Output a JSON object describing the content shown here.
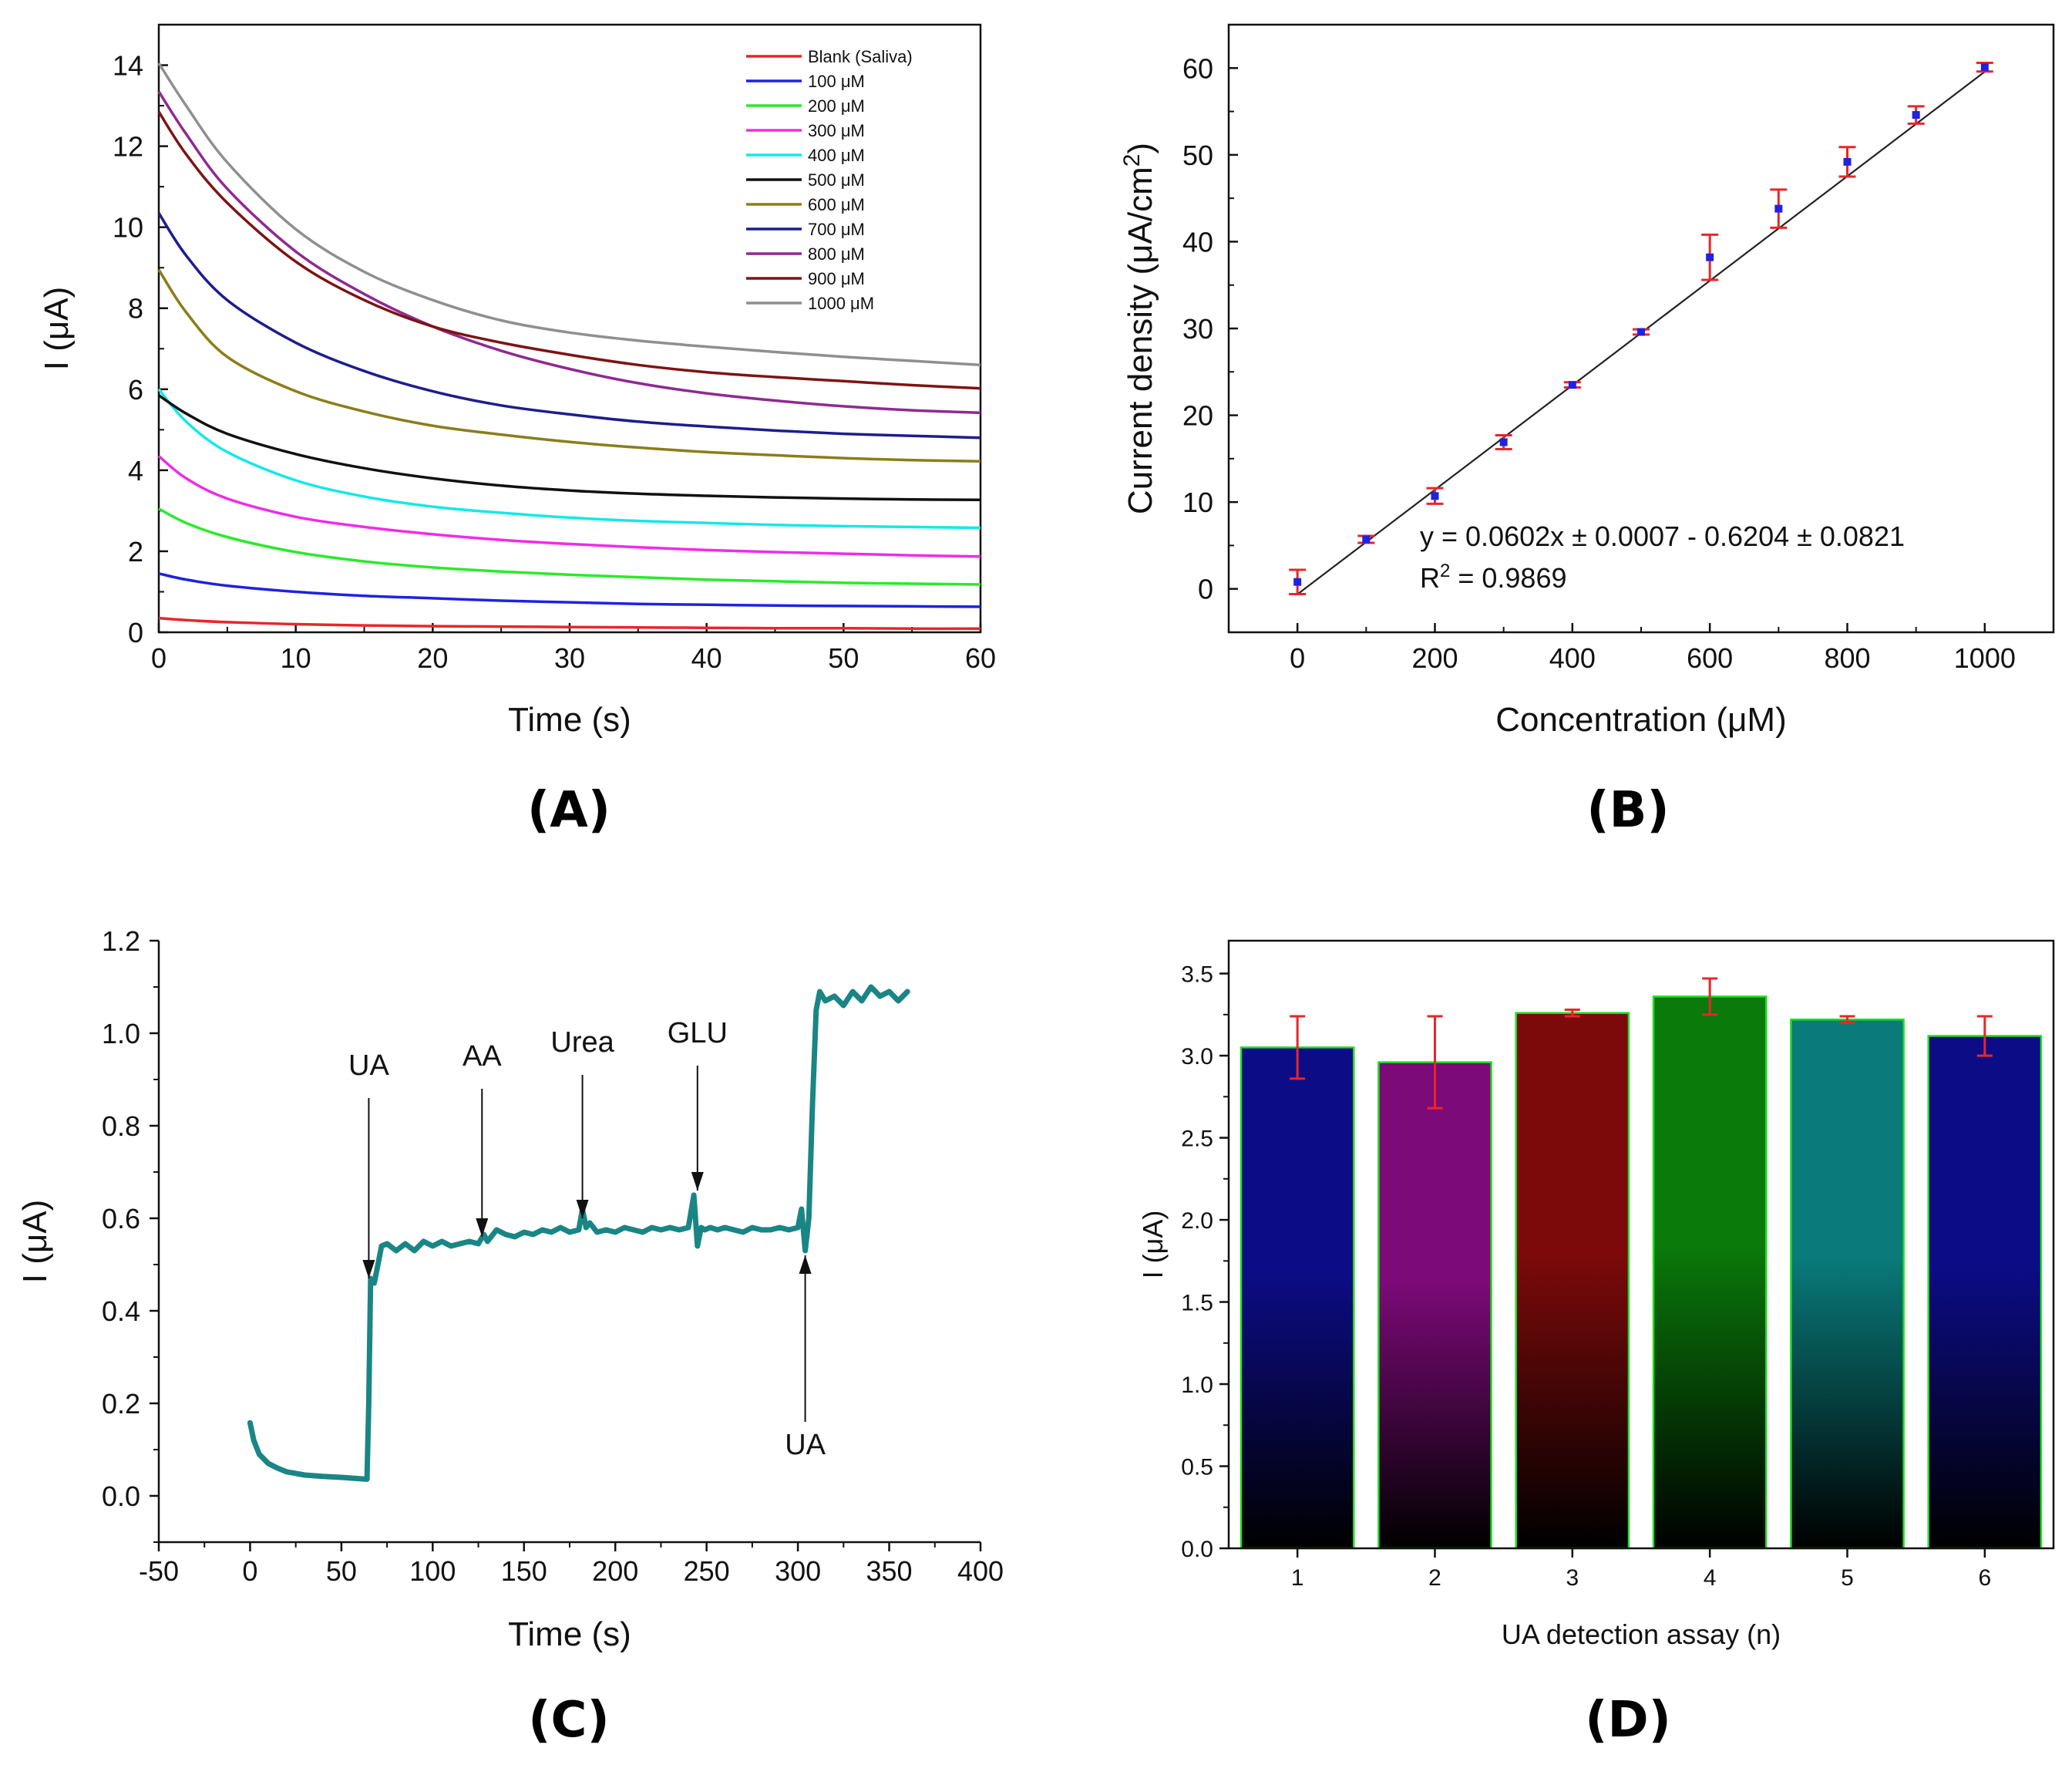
{
  "chart_data": [
    {
      "id": "A",
      "type": "line",
      "panel_label": "(A)",
      "xlabel": "Time (s)",
      "ylabel": "I (μA)",
      "xlim": [
        0,
        60
      ],
      "ylim": [
        0,
        15
      ],
      "xticks": [
        "0",
        "10",
        "20",
        "30",
        "40",
        "50",
        "60"
      ],
      "yticks": [
        "0",
        "2",
        "4",
        "6",
        "8",
        "10",
        "12",
        "14"
      ],
      "x": [
        0,
        2,
        5,
        10,
        15,
        20,
        25,
        30,
        35,
        40,
        45,
        50,
        55,
        60
      ],
      "series": [
        {
          "name": "Blank (Saliva)",
          "color": "#e8262b",
          "values": [
            0.35,
            0.3,
            0.25,
            0.2,
            0.17,
            0.15,
            0.14,
            0.13,
            0.12,
            0.11,
            0.1,
            0.1,
            0.09,
            0.09
          ]
        },
        {
          "name": "100 μM",
          "color": "#1f22e0",
          "values": [
            1.45,
            1.3,
            1.15,
            1.0,
            0.9,
            0.84,
            0.78,
            0.74,
            0.7,
            0.68,
            0.66,
            0.65,
            0.64,
            0.63
          ]
        },
        {
          "name": "200 μM",
          "color": "#2bea2b",
          "values": [
            3.05,
            2.7,
            2.35,
            1.98,
            1.75,
            1.6,
            1.5,
            1.42,
            1.36,
            1.3,
            1.26,
            1.22,
            1.2,
            1.18
          ]
        },
        {
          "name": "300 μM",
          "color": "#f02be8",
          "values": [
            4.35,
            3.8,
            3.3,
            2.85,
            2.6,
            2.42,
            2.28,
            2.18,
            2.1,
            2.03,
            1.98,
            1.94,
            1.9,
            1.87
          ]
        },
        {
          "name": "400 μM",
          "color": "#14e8e8",
          "values": [
            6.0,
            5.2,
            4.45,
            3.75,
            3.35,
            3.1,
            2.95,
            2.83,
            2.75,
            2.7,
            2.65,
            2.62,
            2.6,
            2.58
          ]
        },
        {
          "name": "500 μM",
          "color": "#111111",
          "values": [
            5.85,
            5.4,
            4.9,
            4.4,
            4.05,
            3.8,
            3.62,
            3.5,
            3.42,
            3.37,
            3.33,
            3.3,
            3.28,
            3.27
          ]
        },
        {
          "name": "600 μM",
          "color": "#8c7d1a",
          "values": [
            8.95,
            7.9,
            6.8,
            5.95,
            5.45,
            5.1,
            4.88,
            4.7,
            4.56,
            4.45,
            4.37,
            4.3,
            4.25,
            4.22
          ]
        },
        {
          "name": "700 μM",
          "color": "#1c1e8c",
          "values": [
            10.35,
            9.3,
            8.2,
            7.15,
            6.45,
            5.95,
            5.6,
            5.38,
            5.2,
            5.08,
            4.98,
            4.9,
            4.85,
            4.8
          ]
        },
        {
          "name": "800 μM",
          "color": "#8e2a92",
          "values": [
            13.35,
            12.3,
            10.95,
            9.4,
            8.35,
            7.55,
            6.95,
            6.5,
            6.15,
            5.9,
            5.72,
            5.58,
            5.48,
            5.42
          ]
        },
        {
          "name": "900 μM",
          "color": "#7d1414",
          "values": [
            12.85,
            11.8,
            10.6,
            9.15,
            8.2,
            7.55,
            7.15,
            6.85,
            6.6,
            6.42,
            6.3,
            6.2,
            6.1,
            6.02
          ]
        },
        {
          "name": "1000 μM",
          "color": "#8f8f8f",
          "values": [
            14.05,
            13.0,
            11.6,
            9.95,
            8.9,
            8.2,
            7.7,
            7.4,
            7.2,
            7.05,
            6.92,
            6.8,
            6.7,
            6.6
          ]
        }
      ]
    },
    {
      "id": "B",
      "type": "scatter",
      "panel_label": "(B)",
      "xlabel": "Concentration (μM)",
      "ylabel_main": "Current density (μA/cm",
      "ylabel_sup": "2",
      "ylabel_end": ")",
      "xlim": [
        -100,
        1100
      ],
      "ylim": [
        -5,
        65
      ],
      "xticks": [
        "0",
        "200",
        "400",
        "600",
        "800",
        "1000"
      ],
      "yticks": [
        "0",
        "10",
        "20",
        "30",
        "40",
        "50",
        "60"
      ],
      "x": [
        0,
        100,
        200,
        300,
        400,
        500,
        600,
        700,
        800,
        900,
        1000
      ],
      "values": [
        0.8,
        5.7,
        10.7,
        16.9,
        23.5,
        29.6,
        38.2,
        43.8,
        49.2,
        54.6,
        60.1
      ],
      "errors": [
        1.4,
        0.4,
        0.9,
        0.8,
        0.3,
        0.3,
        2.6,
        2.2,
        1.7,
        1.0,
        0.5
      ],
      "fit": {
        "slope": 0.0602,
        "intercept": -0.6204
      },
      "equation": "y = 0.0602x ± 0.0007 - 0.6204 ± 0.0821",
      "r2_label": "R",
      "r2_sup": "2",
      "r2_value": " = 0.9869"
    },
    {
      "id": "C",
      "type": "line",
      "panel_label": "(C)",
      "xlabel": "Time (s)",
      "ylabel": "I (μA)",
      "xlim": [
        -50,
        400
      ],
      "ylim": [
        -0.1,
        1.2
      ],
      "xticks": [
        "-50",
        "0",
        "50",
        "100",
        "150",
        "200",
        "250",
        "300",
        "350",
        "400"
      ],
      "yticks": [
        "0.0",
        "0.2",
        "0.4",
        "0.6",
        "0.8",
        "1.0",
        "1.2"
      ],
      "color": "#1a8585",
      "x": [
        0,
        2,
        5,
        10,
        15,
        20,
        30,
        40,
        50,
        60,
        64,
        65,
        66,
        68,
        70,
        72,
        75,
        80,
        85,
        90,
        95,
        100,
        105,
        110,
        115,
        120,
        125,
        128,
        130,
        135,
        140,
        145,
        150,
        155,
        160,
        165,
        170,
        175,
        180,
        182,
        184,
        186,
        190,
        195,
        200,
        205,
        210,
        215,
        220,
        225,
        230,
        235,
        240,
        243,
        245,
        247,
        249,
        252,
        256,
        260,
        265,
        270,
        275,
        280,
        285,
        290,
        295,
        300,
        302,
        304,
        306,
        308,
        310,
        312,
        315,
        320,
        325,
        330,
        335,
        340,
        345,
        350,
        355,
        360
      ],
      "values": [
        0.158,
        0.12,
        0.09,
        0.07,
        0.06,
        0.052,
        0.045,
        0.042,
        0.04,
        0.037,
        0.036,
        0.2,
        0.47,
        0.46,
        0.5,
        0.54,
        0.545,
        0.53,
        0.545,
        0.53,
        0.55,
        0.54,
        0.55,
        0.54,
        0.545,
        0.55,
        0.545,
        0.565,
        0.55,
        0.575,
        0.565,
        0.56,
        0.57,
        0.565,
        0.575,
        0.57,
        0.58,
        0.57,
        0.575,
        0.62,
        0.58,
        0.59,
        0.57,
        0.575,
        0.57,
        0.58,
        0.575,
        0.57,
        0.58,
        0.575,
        0.58,
        0.575,
        0.58,
        0.65,
        0.54,
        0.58,
        0.575,
        0.58,
        0.575,
        0.58,
        0.575,
        0.57,
        0.58,
        0.575,
        0.575,
        0.58,
        0.575,
        0.58,
        0.62,
        0.53,
        0.6,
        0.85,
        1.05,
        1.09,
        1.07,
        1.08,
        1.06,
        1.09,
        1.07,
        1.1,
        1.08,
        1.09,
        1.07,
        1.09
      ],
      "annotations": [
        {
          "label": "UA",
          "x": 65,
          "y_tip": 0.47,
          "y_tail": 0.86,
          "y_text": 0.91,
          "from": "above"
        },
        {
          "label": "AA",
          "x": 127,
          "y_tip": 0.56,
          "y_tail": 0.88,
          "y_text": 0.93,
          "from": "above"
        },
        {
          "label": "Urea",
          "x": 182,
          "y_tip": 0.6,
          "y_tail": 0.91,
          "y_text": 0.96,
          "from": "above"
        },
        {
          "label": "GLU",
          "x": 245,
          "y_tip": 0.66,
          "y_tail": 0.93,
          "y_text": 0.98,
          "from": "above"
        },
        {
          "label": "UA",
          "x": 304,
          "y_tip": 0.52,
          "y_tail": 0.16,
          "y_text": 0.15,
          "from": "below"
        }
      ]
    },
    {
      "id": "D",
      "type": "bar",
      "panel_label": "(D)",
      "xlabel": "UA detection assay (n)",
      "ylabel": "I (μA)",
      "ylim": [
        0,
        3.7
      ],
      "yticks": [
        "0.0",
        "0.5",
        "1.0",
        "1.5",
        "2.0",
        "2.5",
        "3.0",
        "3.5"
      ],
      "categories": [
        "1",
        "2",
        "3",
        "4",
        "5",
        "6"
      ],
      "values": [
        3.05,
        2.96,
        3.26,
        3.36,
        3.22,
        3.12
      ],
      "errors": [
        0.19,
        0.28,
        0.02,
        0.11,
        0.02,
        0.12
      ],
      "colors": [
        "#0c0c86",
        "#7c0a78",
        "#7d0a0a",
        "#0a7a0a",
        "#0a7a7a",
        "#0c0c86"
      ],
      "edge_color": "#22dd22",
      "error_color": "#e8262b"
    }
  ]
}
